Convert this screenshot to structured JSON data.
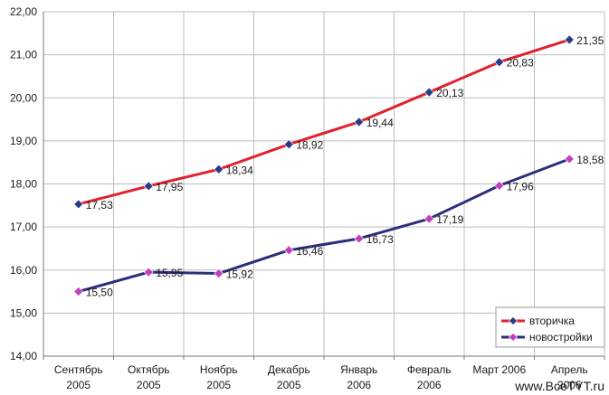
{
  "chart_data": {
    "type": "line",
    "categories": [
      [
        "Сентябрь",
        "2005"
      ],
      [
        "Октябрь",
        "2005"
      ],
      [
        "Ноябрь",
        "2005"
      ],
      [
        "Декабрь",
        "2005"
      ],
      [
        "Январь",
        "2006"
      ],
      [
        "Февраль",
        "2006"
      ],
      [
        "Март 2006"
      ],
      [
        "Апрель",
        "2006"
      ]
    ],
    "series": [
      {
        "name": "вторичка",
        "values": [
          17.53,
          17.95,
          18.34,
          18.92,
          19.44,
          20.13,
          20.83,
          21.35
        ],
        "labels": [
          "17,53",
          "17,95",
          "18,34",
          "18,92",
          "19,44",
          "20,13",
          "20,83",
          "21,35"
        ],
        "color": "#e0222e",
        "marker_color": "#2b3a8c"
      },
      {
        "name": "новостройки",
        "values": [
          15.5,
          15.95,
          15.92,
          16.46,
          16.73,
          17.19,
          17.96,
          18.58
        ],
        "labels": [
          "15,50",
          "15,95",
          "15,92",
          "16,46",
          "16,73",
          "17,19",
          "17,96",
          "18,58"
        ],
        "color": "#2b2f7a",
        "marker_color": "#c43fbf"
      }
    ],
    "ylim": [
      14,
      22
    ],
    "y_ticks": [
      14,
      15,
      16,
      17,
      18,
      19,
      20,
      21,
      22
    ],
    "y_tick_labels": [
      "14,00",
      "15,00",
      "16,00",
      "17,00",
      "18,00",
      "19,00",
      "20,00",
      "21,00",
      "22,00"
    ],
    "grid": true,
    "legend_position": "bottom-right"
  },
  "watermark": "www.BceTYT.ru"
}
